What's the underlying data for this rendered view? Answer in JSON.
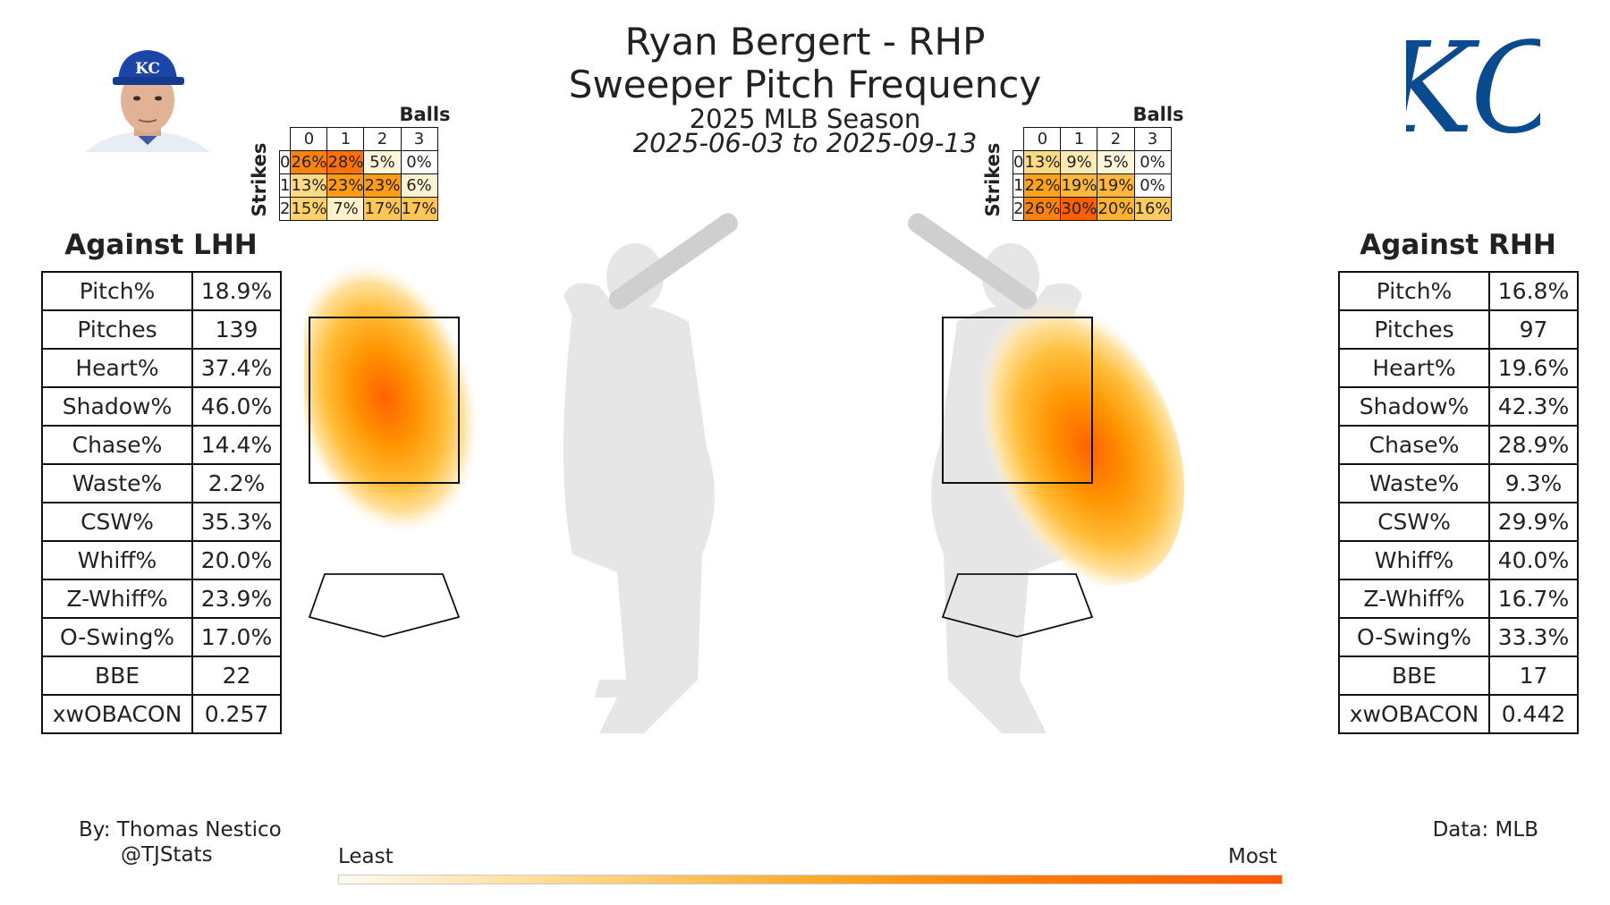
{
  "header": {
    "title_line1": "Ryan Bergert - RHP",
    "title_line2": "Sweeper Pitch Frequency",
    "season": "2025 MLB Season",
    "date_range": "2025-06-03 to 2025-09-13"
  },
  "logo": {
    "text": "KC",
    "color": "#0a4a8f"
  },
  "count_tables": {
    "balls_label": "Balls",
    "strikes_label": "Strikes",
    "ball_headers": [
      "0",
      "1",
      "2",
      "3"
    ],
    "strike_headers": [
      "0",
      "1",
      "2"
    ],
    "lhh": [
      [
        "26%",
        "28%",
        "5%",
        "0%"
      ],
      [
        "13%",
        "23%",
        "23%",
        "6%"
      ],
      [
        "15%",
        "7%",
        "17%",
        "17%"
      ]
    ],
    "rhh": [
      [
        "13%",
        "9%",
        "5%",
        "0%"
      ],
      [
        "22%",
        "19%",
        "19%",
        "0%"
      ],
      [
        "26%",
        "30%",
        "20%",
        "16%"
      ]
    ],
    "lhh_values": [
      [
        26,
        28,
        5,
        0
      ],
      [
        13,
        23,
        23,
        6
      ],
      [
        15,
        7,
        17,
        17
      ]
    ],
    "rhh_values": [
      [
        13,
        9,
        5,
        0
      ],
      [
        22,
        19,
        19,
        0
      ],
      [
        26,
        30,
        20,
        16
      ]
    ]
  },
  "lhh": {
    "title": "Against LHH",
    "stats": [
      {
        "label": "Pitch%",
        "value": "18.9%"
      },
      {
        "label": "Pitches",
        "value": "139"
      },
      {
        "label": "Heart%",
        "value": "37.4%"
      },
      {
        "label": "Shadow%",
        "value": "46.0%"
      },
      {
        "label": "Chase%",
        "value": "14.4%"
      },
      {
        "label": "Waste%",
        "value": "2.2%"
      },
      {
        "label": "CSW%",
        "value": "35.3%"
      },
      {
        "label": "Whiff%",
        "value": "20.0%"
      },
      {
        "label": "Z-Whiff%",
        "value": "23.9%"
      },
      {
        "label": "O-Swing%",
        "value": "17.0%"
      },
      {
        "label": "BBE",
        "value": "22"
      },
      {
        "label": "xwOBACON",
        "value": "0.257"
      }
    ]
  },
  "rhh": {
    "title": "Against RHH",
    "stats": [
      {
        "label": "Pitch%",
        "value": "16.8%"
      },
      {
        "label": "Pitches",
        "value": "97"
      },
      {
        "label": "Heart%",
        "value": "19.6%"
      },
      {
        "label": "Shadow%",
        "value": "42.3%"
      },
      {
        "label": "Chase%",
        "value": "28.9%"
      },
      {
        "label": "Waste%",
        "value": "9.3%"
      },
      {
        "label": "CSW%",
        "value": "29.9%"
      },
      {
        "label": "Whiff%",
        "value": "40.0%"
      },
      {
        "label": "Z-Whiff%",
        "value": "16.7%"
      },
      {
        "label": "O-Swing%",
        "value": "33.3%"
      },
      {
        "label": "BBE",
        "value": "17"
      },
      {
        "label": "xwOBACON",
        "value": "0.442"
      }
    ]
  },
  "footer": {
    "credit_line1": "By: Thomas Nestico",
    "credit_line2": "@TJStats",
    "data_source": "Data: MLB",
    "legend_least": "Least",
    "legend_most": "Most"
  },
  "colors": {
    "heat_low": "#fff6e0",
    "heat_mid": "#ffb020",
    "heat_high": "#ff5500",
    "silhouette": "#e6e6e6"
  },
  "chart_data": {
    "type": "heatmap",
    "title": "Sweeper Pitch Frequency",
    "series": [
      {
        "name": "Against LHH",
        "density_peak_location": "middle of zone, slightly low-left"
      },
      {
        "name": "Against RHH",
        "density_peak_location": "low-away edge of zone toward arm-side"
      }
    ],
    "legend": {
      "low": "Least",
      "high": "Most"
    }
  }
}
